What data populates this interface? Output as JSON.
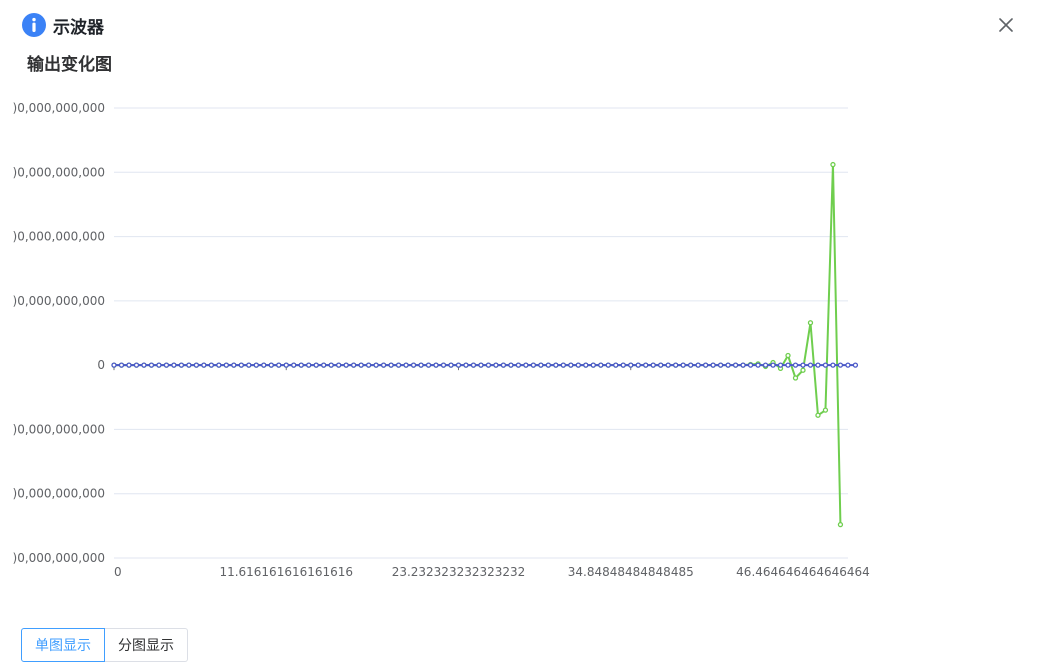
{
  "dialog": {
    "title": "示波器",
    "icon": "info-icon",
    "close_icon": "close-icon",
    "accent_color": "#3b82f6"
  },
  "section_title": "输出变化图",
  "buttons": {
    "single_label": "单图显示",
    "split_label": "分图显示"
  },
  "chart_data": {
    "type": "line",
    "title": "",
    "xlabel": "",
    "ylabel": "",
    "x_tick_labels": [
      "0",
      "11.616161616161616",
      "23.232323232323232",
      "34.84848484848485",
      "46.464646464646464"
    ],
    "y_tick_labels": [
      ")0,000,000,000",
      ")0,000,000,000",
      ")0,000,000,000",
      ")0,000,000,000",
      "0",
      ")0,000,000,000",
      ")0,000,000,000",
      ")0,000,000,000"
    ],
    "xlim": [
      0,
      49.5
    ],
    "ylim": [
      -3,
      4
    ],
    "grid": true,
    "x_step": 0.5050505050505051,
    "series": [
      {
        "color": "#6fce4e",
        "values": [
          0,
          0,
          0,
          0,
          0,
          0,
          0,
          0,
          0,
          0,
          0,
          0,
          0,
          0,
          0,
          0,
          0,
          0,
          0,
          0,
          0,
          0,
          0,
          0,
          0,
          0,
          0,
          0,
          0,
          0,
          0,
          0,
          0,
          0,
          0,
          0,
          0,
          0,
          0,
          0,
          0,
          0,
          0,
          0,
          0,
          0,
          0,
          0,
          0,
          0,
          0,
          0,
          0,
          0,
          0,
          0,
          0,
          0,
          0,
          0,
          0,
          0,
          0,
          0,
          0,
          0,
          0,
          0,
          0,
          0,
          0,
          0,
          0,
          0,
          0,
          0,
          0,
          0,
          0,
          0,
          0,
          0,
          0,
          0,
          0,
          0.01,
          0.02,
          -0.02,
          0.04,
          -0.05,
          0.15,
          -0.2,
          -0.08,
          0.66,
          -0.78,
          -0.7,
          3.12,
          -2.48
        ]
      },
      {
        "color": "#4a58c8",
        "values": [
          0,
          0,
          0,
          0,
          0,
          0,
          0,
          0,
          0,
          0,
          0,
          0,
          0,
          0,
          0,
          0,
          0,
          0,
          0,
          0,
          0,
          0,
          0,
          0,
          0,
          0,
          0,
          0,
          0,
          0,
          0,
          0,
          0,
          0,
          0,
          0,
          0,
          0,
          0,
          0,
          0,
          0,
          0,
          0,
          0,
          0,
          0,
          0,
          0,
          0,
          0,
          0,
          0,
          0,
          0,
          0,
          0,
          0,
          0,
          0,
          0,
          0,
          0,
          0,
          0,
          0,
          0,
          0,
          0,
          0,
          0,
          0,
          0,
          0,
          0,
          0,
          0,
          0,
          0,
          0,
          0,
          0,
          0,
          0,
          0,
          0,
          0,
          0,
          0,
          0,
          0,
          0,
          0,
          0,
          0,
          0,
          0,
          0,
          0,
          0
        ]
      }
    ]
  }
}
